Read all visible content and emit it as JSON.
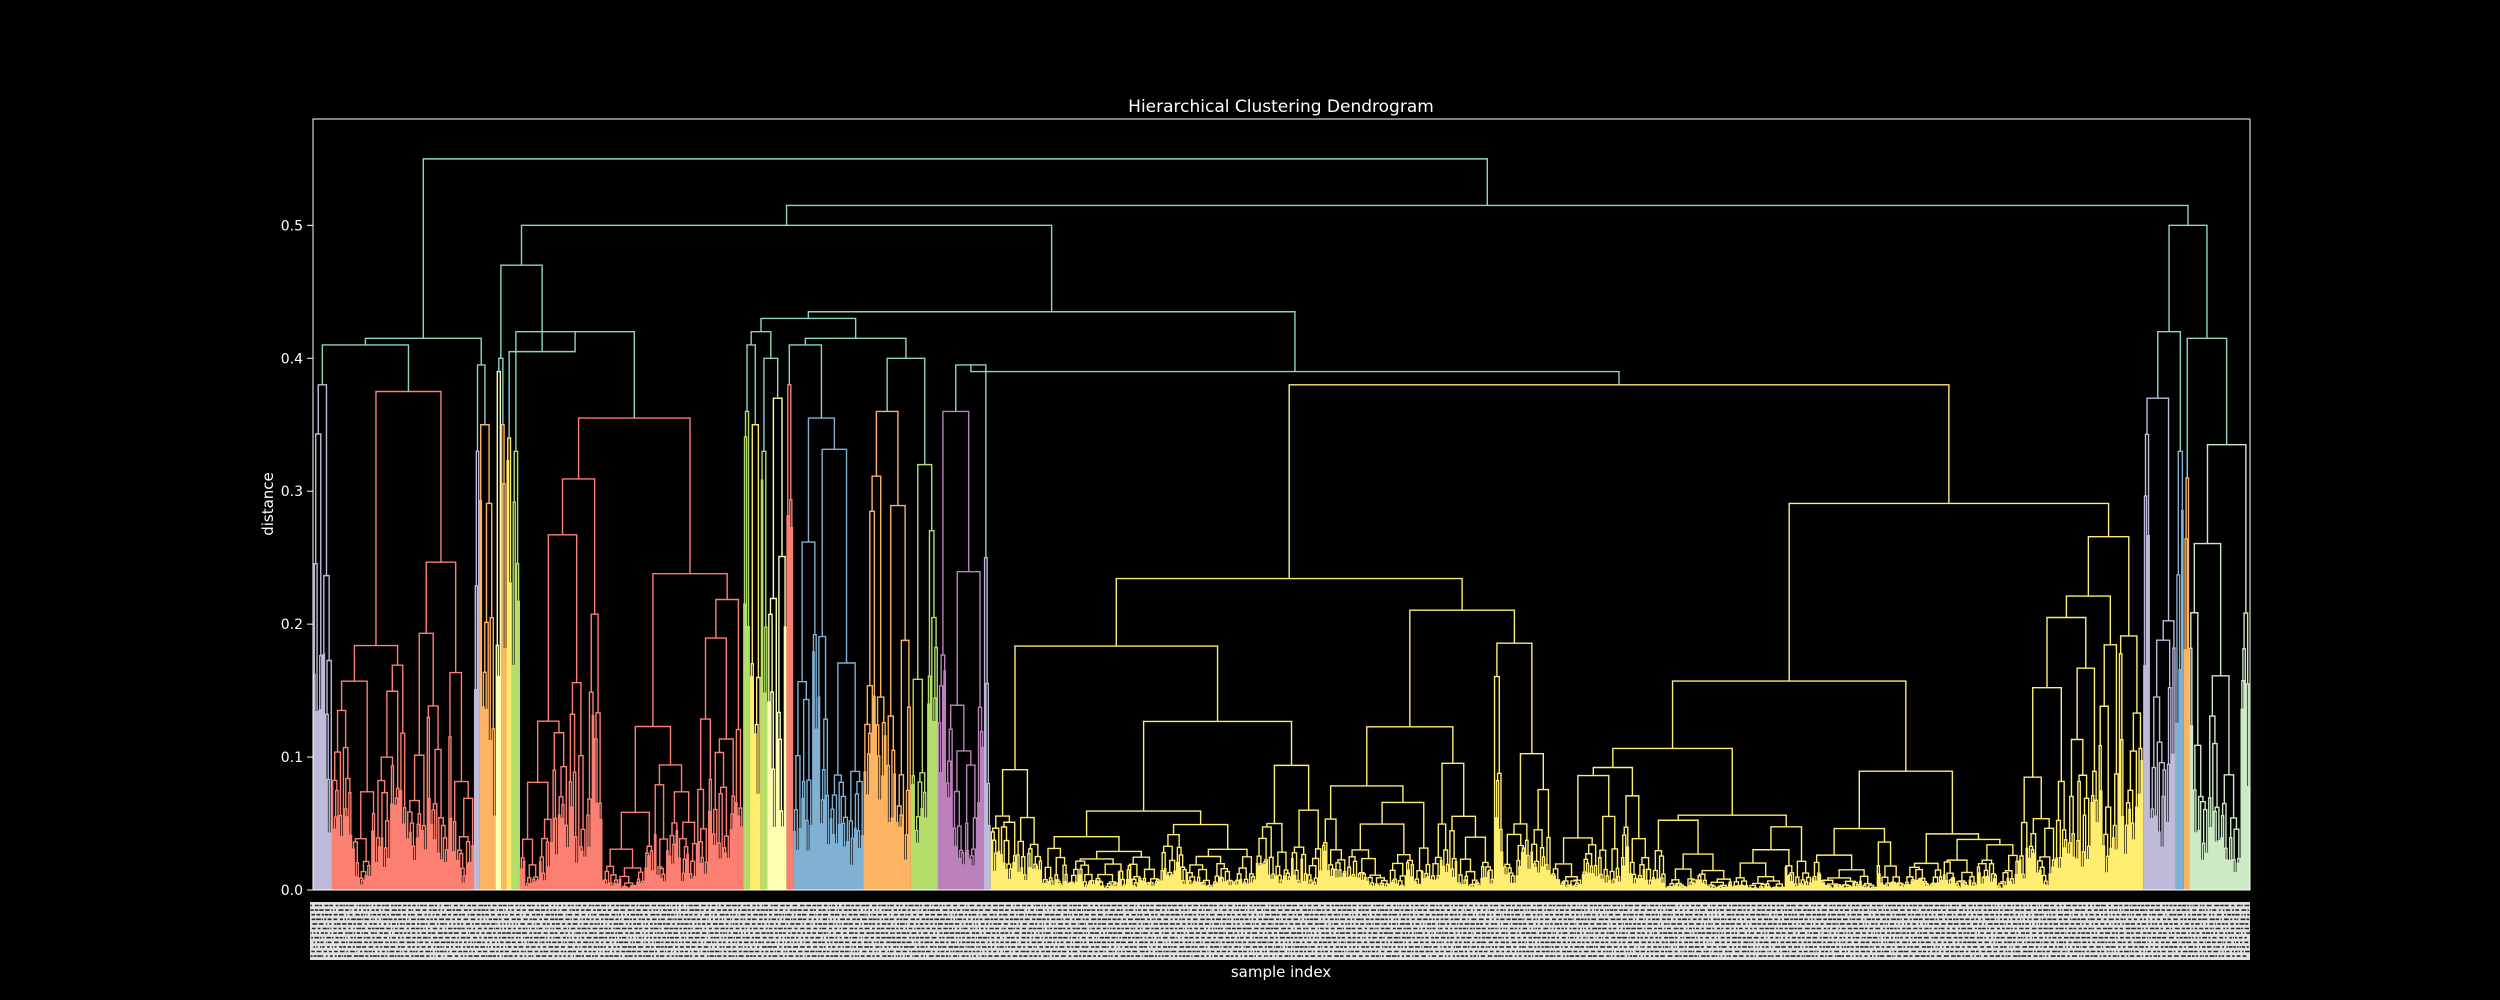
{
  "chart_data": {
    "type": "dendrogram",
    "title": "Hierarchical Clustering Dendrogram",
    "xlabel": "sample index",
    "ylabel": "distance",
    "ylim": [
      0,
      0.58
    ],
    "yticks": [
      0.0,
      0.1,
      0.2,
      0.3,
      0.4,
      0.5
    ],
    "ytick_labels": [
      "0.0",
      "0.1",
      "0.2",
      "0.3",
      "0.4",
      "0.5"
    ],
    "grid": false,
    "background_color": "#000000",
    "link_color_above_threshold": "#8dd3c7",
    "leaf_count_approx": 1450,
    "leaf_labels": "sample indices (rotated, dense, illegible)",
    "clusters": [
      {
        "color": "#bebada",
        "leaves": 14,
        "height": 0.38
      },
      {
        "color": "#fb8072",
        "leaves": 105,
        "height": 0.375
      },
      {
        "color": "#bebada",
        "leaves": 4,
        "height": 0.33
      },
      {
        "color": "#fdb462",
        "leaves": 12,
        "height": 0.35
      },
      {
        "color": "#ffffb3",
        "leaves": 4,
        "height": 0.39
      },
      {
        "color": "#fdb462",
        "leaves": 4,
        "height": 0.35
      },
      {
        "color": "#ffed6f",
        "leaves": 4,
        "height": 0.34
      },
      {
        "color": "#b3de69",
        "leaves": 6,
        "height": 0.33
      },
      {
        "color": "#fb8072",
        "leaves": 165,
        "height": 0.355
      },
      {
        "color": "#b3de69",
        "leaves": 5,
        "height": 0.36
      },
      {
        "color": "#ffed6f",
        "leaves": 8,
        "height": 0.35
      },
      {
        "color": "#b3de69",
        "leaves": 5,
        "height": 0.33
      },
      {
        "color": "#ffffb3",
        "leaves": 14,
        "height": 0.37
      },
      {
        "color": "#fb8072",
        "leaves": 5,
        "height": 0.38
      },
      {
        "color": "#80b1d3",
        "leaves": 52,
        "height": 0.355
      },
      {
        "color": "#fdb462",
        "leaves": 35,
        "height": 0.36
      },
      {
        "color": "#b3de69",
        "leaves": 20,
        "height": 0.32
      },
      {
        "color": "#bc80bd",
        "leaves": 34,
        "height": 0.36
      },
      {
        "color": "#bebada",
        "leaves": 5,
        "height": 0.25
      },
      {
        "color": "#ffed6f",
        "leaves": 852,
        "height": 0.38
      },
      {
        "color": "#bebada",
        "leaves": 24,
        "height": 0.37
      },
      {
        "color": "#80b1d3",
        "leaves": 6,
        "height": 0.33
      },
      {
        "color": "#fdb462",
        "leaves": 4,
        "height": 0.31
      },
      {
        "color": "#ccebc5",
        "leaves": 45,
        "height": 0.335
      }
    ]
  }
}
